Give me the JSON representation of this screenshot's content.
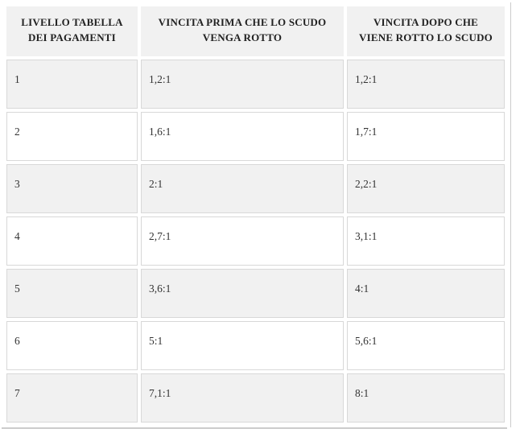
{
  "table": {
    "columns": [
      {
        "label": "LIVELLO TABELLA DEI PAGAMENTI",
        "lines": [
          "LIVELLO TABELLA",
          "DEI PAGAMENTI"
        ]
      },
      {
        "label": "VINCITA PRIMA CHE LO SCUDO VENGA ROTTO",
        "lines": [
          "VINCITA PRIMA CHE LO SCUDO",
          "VENGA ROTTO"
        ]
      },
      {
        "label": "VINCITA DOPO CHE VIENE ROTTO LO SCUDO",
        "lines": [
          "VINCITA DOPO CHE",
          "VIENE ROTTO LO SCUDO"
        ]
      }
    ],
    "rows": [
      [
        "1",
        "1,2:1",
        "1,2:1"
      ],
      [
        "2",
        "1,6:1",
        "1,7:1"
      ],
      [
        "3",
        "2:1",
        "2,2:1"
      ],
      [
        "4",
        "2,7:1",
        "3,1:1"
      ],
      [
        "5",
        "3,6:1",
        "4:1"
      ],
      [
        "6",
        "5:1",
        "5,6:1"
      ],
      [
        "7",
        "7,1:1",
        "8:1"
      ]
    ],
    "colors": {
      "header_bg": "#f1f1f1",
      "shaded_row_bg": "#f1f1f1",
      "plain_row_bg": "#ffffff",
      "cell_border": "#d8d8d8",
      "header_text": "#222222",
      "body_text": "#333333",
      "frame_line": "#cccccc"
    }
  }
}
